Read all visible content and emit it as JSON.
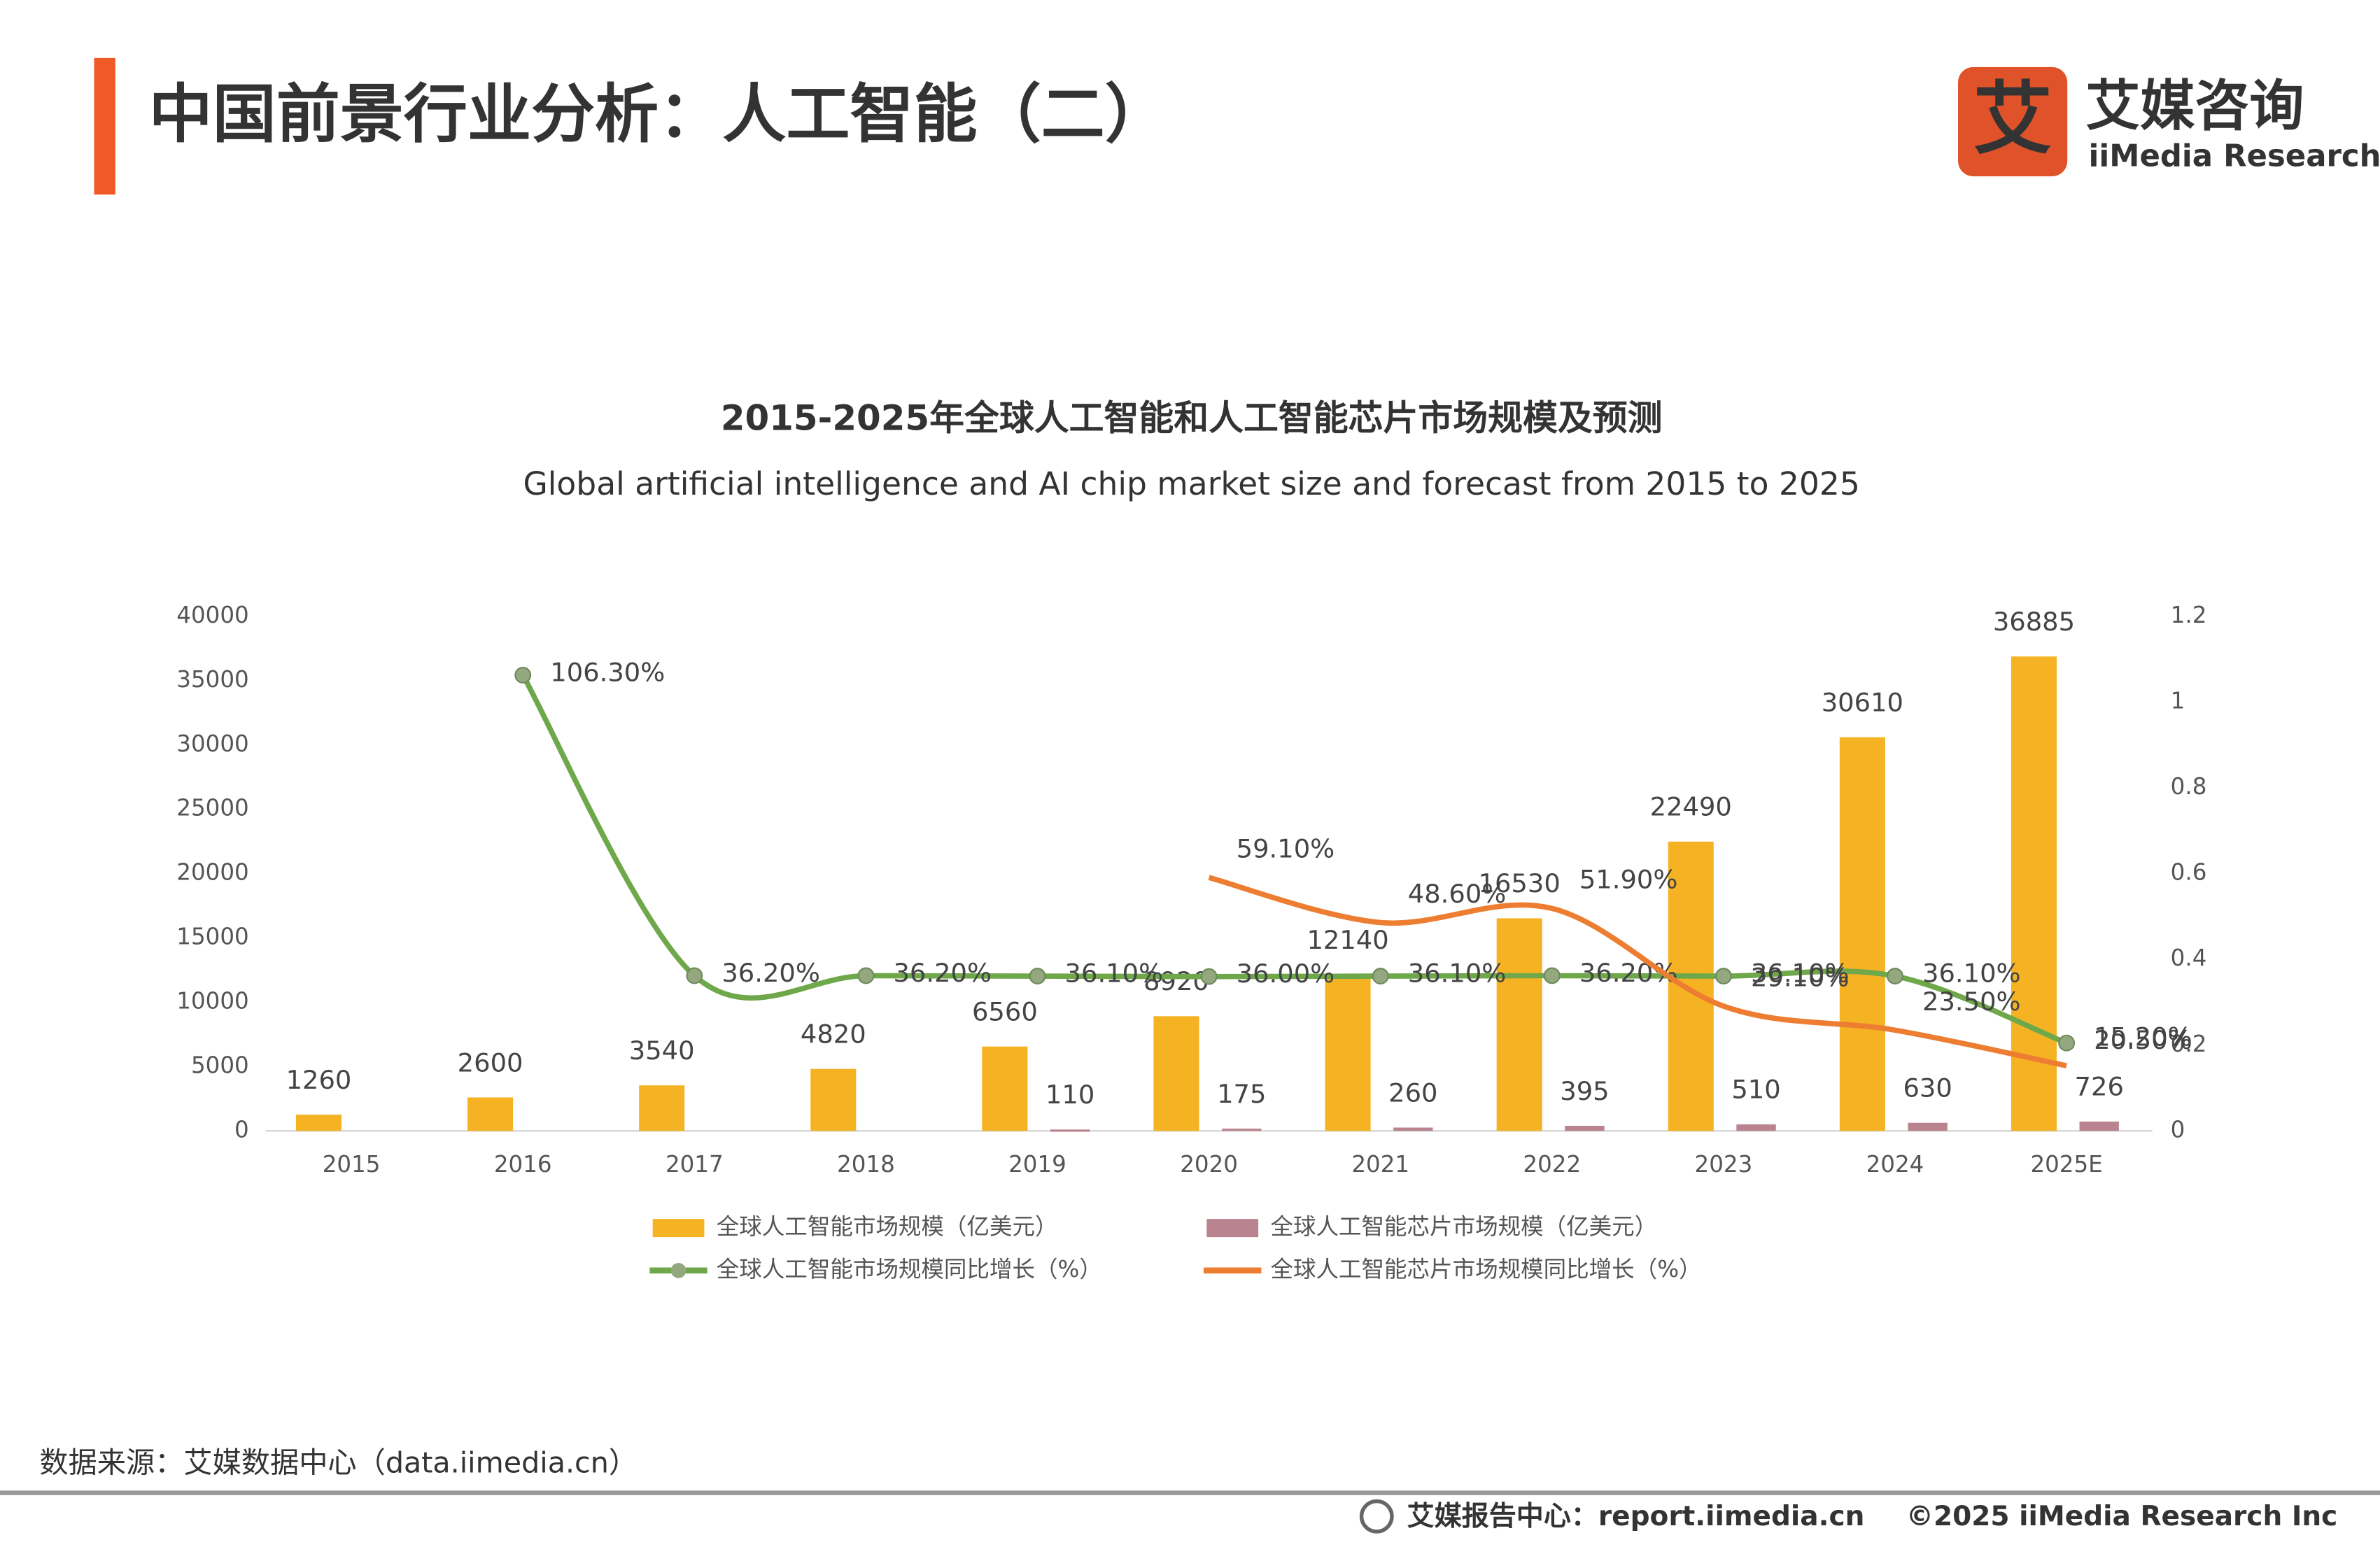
{
  "header": {
    "title": "中国前景行业分析：人工智能（二）",
    "logo_mark": "艾",
    "logo_name": "艾媒咨询",
    "logo_name_en": "iiMedia Research"
  },
  "chart_data": {
    "type": "combo",
    "title": "2015-2025年全球人工智能和人工智能芯片市场规模及预测",
    "subtitle": "Global artificial intelligence and AI chip market size and forecast from 2015 to 2025",
    "categories": [
      "2015",
      "2016",
      "2017",
      "2018",
      "2019",
      "2020",
      "2021",
      "2022",
      "2023",
      "2024",
      "2025E"
    ],
    "series": [
      {
        "name": "全球人工智能市场规模（亿美元）",
        "type": "bar",
        "color": "#f5b324",
        "values": [
          1260,
          2600,
          3540,
          4820,
          6560,
          8920,
          12140,
          16530,
          22490,
          30610,
          36885
        ]
      },
      {
        "name": "全球人工智能芯片市场规模（亿美元）",
        "type": "bar",
        "color": "#b9848f",
        "values": [
          null,
          null,
          null,
          null,
          110,
          175,
          260,
          395,
          510,
          630,
          726
        ]
      },
      {
        "name": "全球人工智能市场规模同比增长（%）",
        "type": "line",
        "axis": "y2",
        "color": "#6fa84a",
        "values": [
          null,
          1.063,
          0.362,
          0.362,
          0.361,
          0.36,
          0.361,
          0.362,
          0.361,
          0.361,
          0.205
        ],
        "value_labels": [
          null,
          "106.30%",
          "36.20%",
          "36.20%",
          "36.10%",
          "36.00%",
          "36.10%",
          "36.20%",
          "36.10%",
          "36.10%",
          "20.50%"
        ]
      },
      {
        "name": "全球人工智能芯片市场规模同比增长（%）",
        "type": "line",
        "axis": "y2",
        "color": "#ed7d31",
        "values": [
          null,
          null,
          null,
          null,
          null,
          0.591,
          0.486,
          0.519,
          0.291,
          0.235,
          0.152
        ],
        "value_labels": [
          null,
          null,
          null,
          null,
          null,
          "59.10%",
          "48.60%",
          "51.90%",
          "29.10%",
          "23.50%",
          "15.20%"
        ]
      }
    ],
    "ylim": [
      0,
      40000
    ],
    "yticks": [
      0,
      5000,
      10000,
      15000,
      20000,
      25000,
      30000,
      35000,
      40000
    ],
    "y2lim": [
      0,
      1.2
    ],
    "y2ticks": [
      0,
      0.2,
      0.4,
      0.6,
      0.8,
      1,
      1.2
    ],
    "legend": "bottom"
  },
  "footer": {
    "source": "数据来源：艾媒数据中心（data.iimedia.cn）",
    "report_center": "艾媒报告中心：report.iimedia.cn",
    "copyright": "©2025  iiMedia Research  Inc"
  }
}
